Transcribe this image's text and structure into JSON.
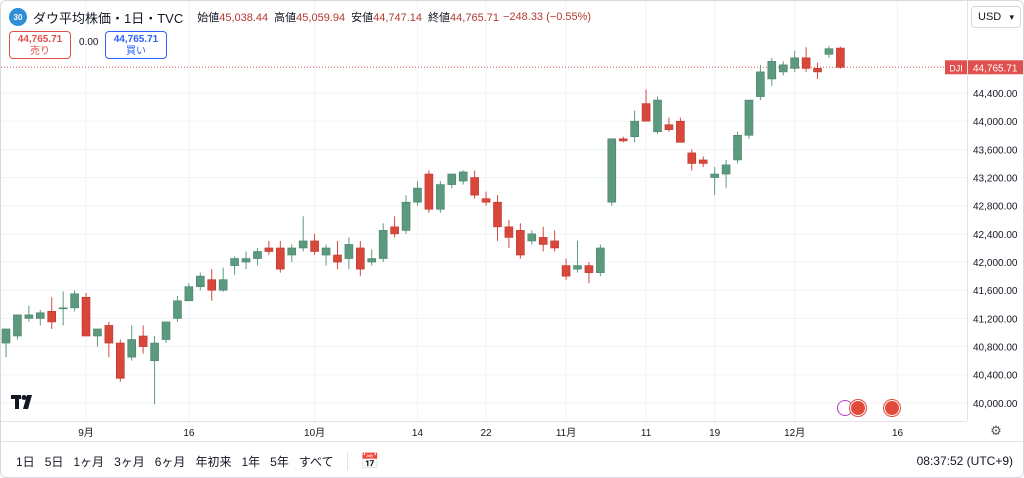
{
  "symbol": {
    "badge": "30",
    "title": "ダウ平均株価・1日・TVC",
    "ohlc": [
      {
        "label": "始値",
        "value": "45,038.44"
      },
      {
        "label": "高値",
        "value": "45,059.94"
      },
      {
        "label": "安値",
        "value": "44,747.14"
      },
      {
        "label": "終値",
        "value": "44,765.71"
      }
    ],
    "change": "−248.33 (−0.55%)"
  },
  "trade": {
    "sell_price": "44,765.71",
    "sell_label": "売り",
    "spread": "0.00",
    "buy_price": "44,765.71",
    "buy_label": "買い"
  },
  "currency": "USD",
  "price_tag": {
    "label": "DJI",
    "value": "44,765.71"
  },
  "bottom_bar": {
    "ranges": [
      "1日",
      "5日",
      "1ヶ月",
      "3ヶ月",
      "6ヶ月",
      "年初来",
      "1年",
      "5年",
      "すべて"
    ],
    "clock": "08:37:52 (UTC+9)"
  },
  "colors": {
    "up": "#5b9a7f",
    "down": "#d9473b",
    "grid": "#f0f3fa",
    "last_price_line": "#e0504f"
  },
  "chart_data": {
    "type": "candlestick",
    "y_ticks": [
      40000,
      40400,
      40800,
      41200,
      41600,
      42000,
      42400,
      42800,
      43200,
      43600,
      44000,
      44400
    ],
    "y_tick_labels": [
      "40,000.00",
      "40,400.00",
      "40,800.00",
      "41,200.00",
      "41,600.00",
      "42,000.00",
      "42,400.00",
      "42,800.00",
      "43,200.00",
      "43,600.00",
      "44,000.00",
      "44,400.00"
    ],
    "ylim": [
      39800,
      45650
    ],
    "x_tick_labels": [
      {
        "index": 7,
        "label": "9月"
      },
      {
        "index": 16,
        "label": "16"
      },
      {
        "index": 27,
        "label": "10月"
      },
      {
        "index": 36,
        "label": "14"
      },
      {
        "index": 42,
        "label": "22"
      },
      {
        "index": 49,
        "label": "11月"
      },
      {
        "index": 56,
        "label": "11"
      },
      {
        "index": 62,
        "label": "19"
      },
      {
        "index": 69,
        "label": "12月"
      },
      {
        "index": 78,
        "label": "16"
      }
    ],
    "last_price": 44765.71,
    "candles": [
      {
        "o": 40850,
        "h": 41050,
        "l": 40650,
        "c": 41050
      },
      {
        "o": 40950,
        "h": 41250,
        "l": 40900,
        "c": 41250
      },
      {
        "o": 41200,
        "h": 41380,
        "l": 41150,
        "c": 41250
      },
      {
        "o": 41200,
        "h": 41320,
        "l": 41100,
        "c": 41280
      },
      {
        "o": 41300,
        "h": 41500,
        "l": 41050,
        "c": 41150
      },
      {
        "o": 41350,
        "h": 41580,
        "l": 41100,
        "c": 41350
      },
      {
        "o": 41350,
        "h": 41600,
        "l": 41300,
        "c": 41550
      },
      {
        "o": 41500,
        "h": 41560,
        "l": 40950,
        "c": 40950
      },
      {
        "o": 40950,
        "h": 41050,
        "l": 40800,
        "c": 41050
      },
      {
        "o": 41100,
        "h": 41150,
        "l": 40650,
        "c": 40850
      },
      {
        "o": 40850,
        "h": 40900,
        "l": 40300,
        "c": 40350
      },
      {
        "o": 40650,
        "h": 41100,
        "l": 40600,
        "c": 40900
      },
      {
        "o": 40950,
        "h": 41100,
        "l": 40700,
        "c": 40800
      },
      {
        "o": 40600,
        "h": 40950,
        "l": 39980,
        "c": 40850
      },
      {
        "o": 40900,
        "h": 41150,
        "l": 40850,
        "c": 41150
      },
      {
        "o": 41200,
        "h": 41520,
        "l": 41150,
        "c": 41450
      },
      {
        "o": 41450,
        "h": 41700,
        "l": 41450,
        "c": 41650
      },
      {
        "o": 41650,
        "h": 41850,
        "l": 41600,
        "c": 41800
      },
      {
        "o": 41750,
        "h": 41900,
        "l": 41450,
        "c": 41600
      },
      {
        "o": 41600,
        "h": 41920,
        "l": 41580,
        "c": 41750
      },
      {
        "o": 41950,
        "h": 42080,
        "l": 41820,
        "c": 42050
      },
      {
        "o": 42000,
        "h": 42150,
        "l": 41900,
        "c": 42050
      },
      {
        "o": 42050,
        "h": 42200,
        "l": 41950,
        "c": 42150
      },
      {
        "o": 42200,
        "h": 42300,
        "l": 42100,
        "c": 42150
      },
      {
        "o": 42200,
        "h": 42300,
        "l": 41850,
        "c": 41900
      },
      {
        "o": 42100,
        "h": 42250,
        "l": 42000,
        "c": 42200
      },
      {
        "o": 42200,
        "h": 42650,
        "l": 42150,
        "c": 42300
      },
      {
        "o": 42300,
        "h": 42400,
        "l": 42100,
        "c": 42150
      },
      {
        "o": 42100,
        "h": 42250,
        "l": 41950,
        "c": 42200
      },
      {
        "o": 42100,
        "h": 42300,
        "l": 41900,
        "c": 42000
      },
      {
        "o": 42050,
        "h": 42350,
        "l": 41900,
        "c": 42250
      },
      {
        "o": 42200,
        "h": 42300,
        "l": 41800,
        "c": 41900
      },
      {
        "o": 42000,
        "h": 42180,
        "l": 41950,
        "c": 42050
      },
      {
        "o": 42050,
        "h": 42550,
        "l": 42000,
        "c": 42450
      },
      {
        "o": 42500,
        "h": 42650,
        "l": 42350,
        "c": 42400
      },
      {
        "o": 42450,
        "h": 42950,
        "l": 42400,
        "c": 42850
      },
      {
        "o": 42850,
        "h": 43150,
        "l": 42800,
        "c": 43050
      },
      {
        "o": 43250,
        "h": 43300,
        "l": 42700,
        "c": 42750
      },
      {
        "o": 42750,
        "h": 43150,
        "l": 42700,
        "c": 43100
      },
      {
        "o": 43100,
        "h": 43250,
        "l": 43050,
        "c": 43250
      },
      {
        "o": 43150,
        "h": 43300,
        "l": 43100,
        "c": 43280
      },
      {
        "o": 43200,
        "h": 43300,
        "l": 42900,
        "c": 42950
      },
      {
        "o": 42900,
        "h": 43000,
        "l": 42800,
        "c": 42850
      },
      {
        "o": 42850,
        "h": 42950,
        "l": 42300,
        "c": 42500
      },
      {
        "o": 42500,
        "h": 42600,
        "l": 42200,
        "c": 42350
      },
      {
        "o": 42450,
        "h": 42550,
        "l": 42050,
        "c": 42100
      },
      {
        "o": 42300,
        "h": 42450,
        "l": 42250,
        "c": 42400
      },
      {
        "o": 42350,
        "h": 42500,
        "l": 42150,
        "c": 42250
      },
      {
        "o": 42300,
        "h": 42450,
        "l": 42150,
        "c": 42200
      },
      {
        "o": 41950,
        "h": 42050,
        "l": 41750,
        "c": 41800
      },
      {
        "o": 41900,
        "h": 42300,
        "l": 41850,
        "c": 41950
      },
      {
        "o": 41950,
        "h": 42000,
        "l": 41700,
        "c": 41850
      },
      {
        "o": 41850,
        "h": 42250,
        "l": 41800,
        "c": 42200
      },
      {
        "o": 42850,
        "h": 43750,
        "l": 42800,
        "c": 43750
      },
      {
        "o": 43750,
        "h": 43780,
        "l": 43700,
        "c": 43720
      },
      {
        "o": 43780,
        "h": 44150,
        "l": 43700,
        "c": 44000
      },
      {
        "o": 44250,
        "h": 44450,
        "l": 44000,
        "c": 44000
      },
      {
        "o": 43850,
        "h": 44350,
        "l": 43820,
        "c": 44300
      },
      {
        "o": 43950,
        "h": 44050,
        "l": 43850,
        "c": 43880
      },
      {
        "o": 44000,
        "h": 44050,
        "l": 43700,
        "c": 43700
      },
      {
        "o": 43550,
        "h": 43600,
        "l": 43300,
        "c": 43400
      },
      {
        "o": 43450,
        "h": 43500,
        "l": 43350,
        "c": 43400
      },
      {
        "o": 43200,
        "h": 43350,
        "l": 42950,
        "c": 43250
      },
      {
        "o": 43250,
        "h": 43450,
        "l": 43050,
        "c": 43380
      },
      {
        "o": 43450,
        "h": 43850,
        "l": 43400,
        "c": 43800
      },
      {
        "o": 43800,
        "h": 44300,
        "l": 43750,
        "c": 44300
      },
      {
        "o": 44350,
        "h": 44800,
        "l": 44300,
        "c": 44700
      },
      {
        "o": 44600,
        "h": 44900,
        "l": 44500,
        "c": 44850
      },
      {
        "o": 44700,
        "h": 44850,
        "l": 44650,
        "c": 44800
      },
      {
        "o": 44750,
        "h": 45000,
        "l": 44700,
        "c": 44900
      },
      {
        "o": 44900,
        "h": 45050,
        "l": 44700,
        "c": 44750
      },
      {
        "o": 44750,
        "h": 44830,
        "l": 44600,
        "c": 44700
      },
      {
        "o": 44950,
        "h": 45070,
        "l": 44900,
        "c": 45030
      },
      {
        "o": 45038.44,
        "h": 45059.94,
        "l": 44747.14,
        "c": 44765.71
      }
    ]
  }
}
